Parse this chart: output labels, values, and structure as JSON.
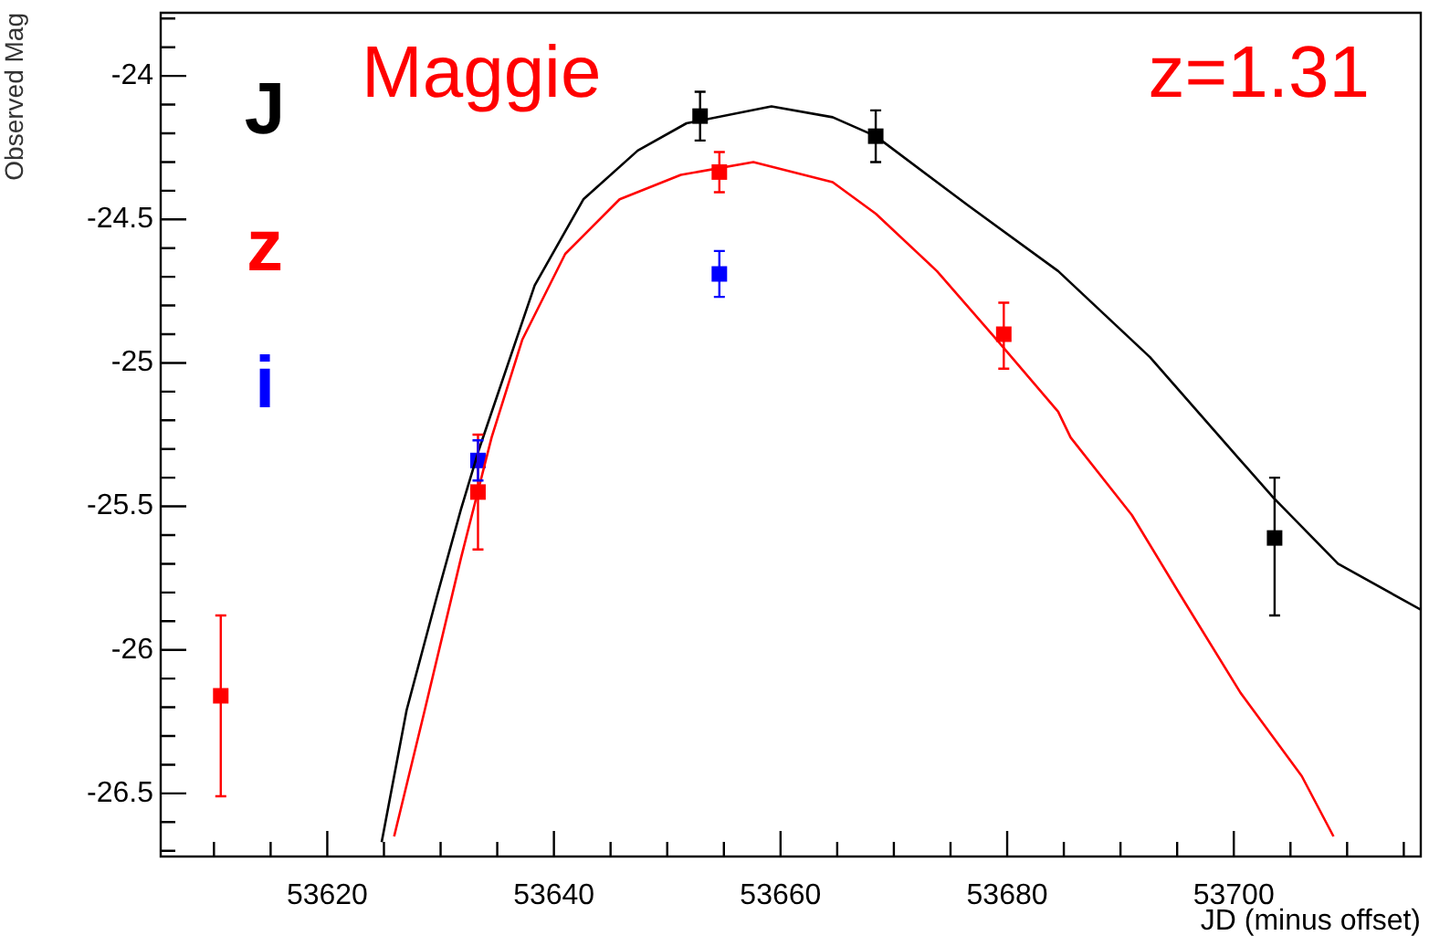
{
  "chart_data": {
    "type": "scatter",
    "xlabel": "JD (minus offset)",
    "ylabel": "Observed Mag",
    "annotations": [
      "Maggie",
      "z=1.31"
    ],
    "xlim": [
      53605.3,
      53716.5
    ],
    "ylim": [
      -26.72,
      -23.78
    ],
    "xticks": [
      {
        "value": 53610,
        "label": null
      },
      {
        "value": 53615,
        "label": null
      },
      53620,
      {
        "value": 53625,
        "label": null
      },
      {
        "value": 53630,
        "label": null
      },
      {
        "value": 53635,
        "label": null
      },
      53640,
      {
        "value": 53645,
        "label": null
      },
      {
        "value": 53650,
        "label": null
      },
      {
        "value": 53655,
        "label": null
      },
      53660,
      {
        "value": 53665,
        "label": null
      },
      {
        "value": 53670,
        "label": null
      },
      {
        "value": 53675,
        "label": null
      },
      53680,
      {
        "value": 53685,
        "label": null
      },
      {
        "value": 53690,
        "label": null
      },
      {
        "value": 53695,
        "label": null
      },
      53700,
      {
        "value": 53705,
        "label": null
      },
      {
        "value": 53710,
        "label": null
      },
      {
        "value": 53715,
        "label": null
      }
    ],
    "yticks": [
      {
        "value": -26.7,
        "label": null
      },
      {
        "value": -26.6,
        "label": null
      },
      -26.5,
      {
        "value": -26.4,
        "label": null
      },
      {
        "value": -26.3,
        "label": null
      },
      {
        "value": -26.2,
        "label": null
      },
      {
        "value": -26.1,
        "label": null
      },
      -26,
      {
        "value": -25.9,
        "label": null
      },
      {
        "value": -25.8,
        "label": null
      },
      {
        "value": -25.7,
        "label": null
      },
      {
        "value": -25.6,
        "label": null
      },
      -25.5,
      {
        "value": -25.4,
        "label": null
      },
      {
        "value": -25.3,
        "label": null
      },
      {
        "value": -25.2,
        "label": null
      },
      {
        "value": -25.1,
        "label": null
      },
      -25,
      {
        "value": -24.9,
        "label": null
      },
      {
        "value": -24.8,
        "label": null
      },
      {
        "value": -24.7,
        "label": null
      },
      {
        "value": -24.6,
        "label": null
      },
      -24.5,
      {
        "value": -24.4,
        "label": null
      },
      {
        "value": -24.3,
        "label": null
      },
      {
        "value": -24.2,
        "label": null
      },
      {
        "value": -24.1,
        "label": null
      },
      -24,
      {
        "value": -23.9,
        "label": null
      },
      {
        "value": -23.8,
        "label": null
      }
    ],
    "legend": "top left",
    "marker": "square",
    "series": [
      {
        "type": "line",
        "marker": "none",
        "color": "#000000",
        "x": [
          53624.8,
          53627,
          53629.7,
          53631.8,
          53633.4,
          53638.3,
          53642.6,
          53647.4,
          53651.7,
          53659.2,
          53664.6,
          53668.4,
          53676.5,
          53684.5,
          53692.6,
          53700.6,
          53703.5,
          53709.2,
          53716.5
        ],
        "values": [
          -26.67,
          -26.21,
          -25.81,
          -25.51,
          -25.3,
          -24.73,
          -24.43,
          -24.26,
          -24.165,
          -24.106,
          -24.144,
          -24.21,
          -24.45,
          -24.68,
          -24.98,
          -25.34,
          -25.47,
          -25.7,
          -25.86
        ]
      },
      {
        "type": "line",
        "marker": "none",
        "color": "#ff0000",
        "x": [
          53625.9,
          53628.6,
          53631.8,
          53634.5,
          53637.2,
          53641,
          53645.8,
          53651.2,
          53657.6,
          53664.6,
          53668.4,
          53673.8,
          53679.1,
          53684.5,
          53685.6,
          53691,
          53695.3,
          53700.6,
          53706,
          53708.8
        ],
        "values": [
          -26.65,
          -26.21,
          -25.68,
          -25.26,
          -24.92,
          -24.62,
          -24.43,
          -24.345,
          -24.3,
          -24.37,
          -24.48,
          -24.68,
          -24.92,
          -25.17,
          -25.26,
          -25.53,
          -25.81,
          -26.15,
          -26.44,
          -26.65
        ]
      },
      {
        "name": "J",
        "color": "#000000",
        "x": [
          53652.9,
          53668.4,
          53703.6
        ],
        "values": [
          -24.14,
          -24.21,
          -25.61
        ],
        "errors": [
          0.085,
          0.09,
          [
            -25.88,
            -25.4
          ]
        ]
      },
      {
        "name": "z",
        "color": "#ff0000",
        "x": [
          53610.6,
          53633.3,
          53654.6,
          53679.7
        ],
        "values": [
          -26.16,
          -25.45,
          -24.335,
          -24.9
        ],
        "errors": [
          [
            -26.51,
            -25.88
          ],
          0.2,
          0.07,
          [
            -25.02,
            -24.79
          ]
        ]
      },
      {
        "name": "i",
        "color": "#0000ff",
        "x": [
          53633.3,
          53654.6
        ],
        "values": [
          -25.34,
          -24.69
        ],
        "errors": [
          0.07,
          0.08
        ]
      }
    ]
  }
}
